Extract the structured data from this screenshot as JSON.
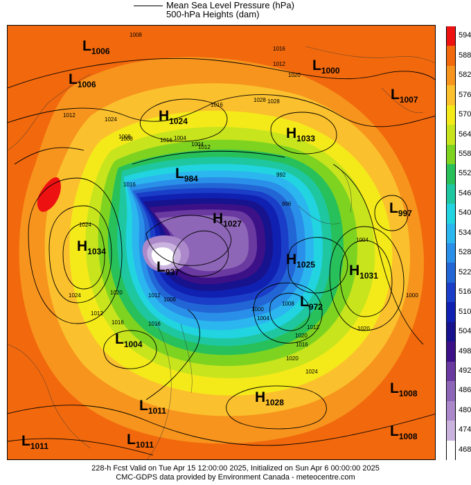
{
  "header": {
    "line1": "Mean Sea Level Pressure (hPa)",
    "line2": "500-hPa Heights (dam)"
  },
  "colorbar": {
    "levels": [
      "594",
      "588",
      "582",
      "576",
      "570",
      "564",
      "558",
      "552",
      "546",
      "540",
      "534",
      "528",
      "522",
      "516",
      "510",
      "504",
      "498",
      "492",
      "486",
      "480",
      "474",
      "468"
    ],
    "colors": [
      "#ee1111",
      "#f2690d",
      "#f7941d",
      "#fbc02d",
      "#f4ea1a",
      "#c7e41d",
      "#7ed321",
      "#27c05a",
      "#1fc7a0",
      "#22d3e0",
      "#2bb6ef",
      "#2a8fe8",
      "#2266d6",
      "#1a3ec7",
      "#1020b0",
      "#17128d",
      "#3c1187",
      "#6b3aa1",
      "#8e66b7",
      "#aa88c9",
      "#c9b3de",
      "#ffffff"
    ]
  },
  "systems": [
    {
      "type": "L",
      "value": "1006",
      "name": "low-1006-nw"
    },
    {
      "type": "L",
      "value": "1006",
      "name": "low-1006-w"
    },
    {
      "type": "H",
      "value": "1024",
      "name": "high-1024"
    },
    {
      "type": "L",
      "value": "1000",
      "name": "low-1000"
    },
    {
      "type": "L",
      "value": "1007",
      "name": "low-1007"
    },
    {
      "type": "H",
      "value": "1033",
      "name": "high-1033"
    },
    {
      "type": "L",
      "value": "984",
      "name": "low-984"
    },
    {
      "type": "H",
      "value": "1034",
      "name": "high-1034"
    },
    {
      "type": "H",
      "value": "1027",
      "name": "high-1027"
    },
    {
      "type": "L",
      "value": "997",
      "name": "low-997"
    },
    {
      "type": "L",
      "value": "937",
      "name": "low-937"
    },
    {
      "type": "H",
      "value": "1025",
      "name": "high-1025"
    },
    {
      "type": "H",
      "value": "1031",
      "name": "high-1031"
    },
    {
      "type": "L",
      "value": "972",
      "name": "low-972"
    },
    {
      "type": "L",
      "value": "1004",
      "name": "low-1004"
    },
    {
      "type": "H",
      "value": "1028",
      "name": "high-1028"
    },
    {
      "type": "L",
      "value": "1011",
      "name": "low-1011-a"
    },
    {
      "type": "L",
      "value": "1008",
      "name": "low-1008-a"
    },
    {
      "type": "L",
      "value": "1011",
      "name": "low-1011-sw"
    },
    {
      "type": "L",
      "value": "1011",
      "name": "low-1011-s"
    },
    {
      "type": "L",
      "value": "1008",
      "name": "low-1008-se"
    }
  ],
  "isobar_labels": [
    "1008",
    "1012",
    "1016",
    "1020",
    "1028",
    "1024",
    "1012",
    "1008",
    "1004",
    "1004",
    "1012",
    "1016",
    "1016",
    "1024",
    "1020",
    "1016",
    "1012",
    "1008",
    "1016",
    "1020",
    "1024",
    "1020",
    "1016",
    "1012",
    "1008",
    "1004",
    "1000",
    "1024",
    "1020",
    "1028",
    "996",
    "992",
    "1008",
    "1012",
    "1016",
    "1004",
    "1000"
  ],
  "footer": {
    "line1": "228-h Fcst Valid on Tue Apr 15 12:00:00 2025, Initialized on Sun Apr  6 00:00:00 2025",
    "line2": "CMC-GDPS data provided by Environment Canada - meteocentre.com"
  }
}
